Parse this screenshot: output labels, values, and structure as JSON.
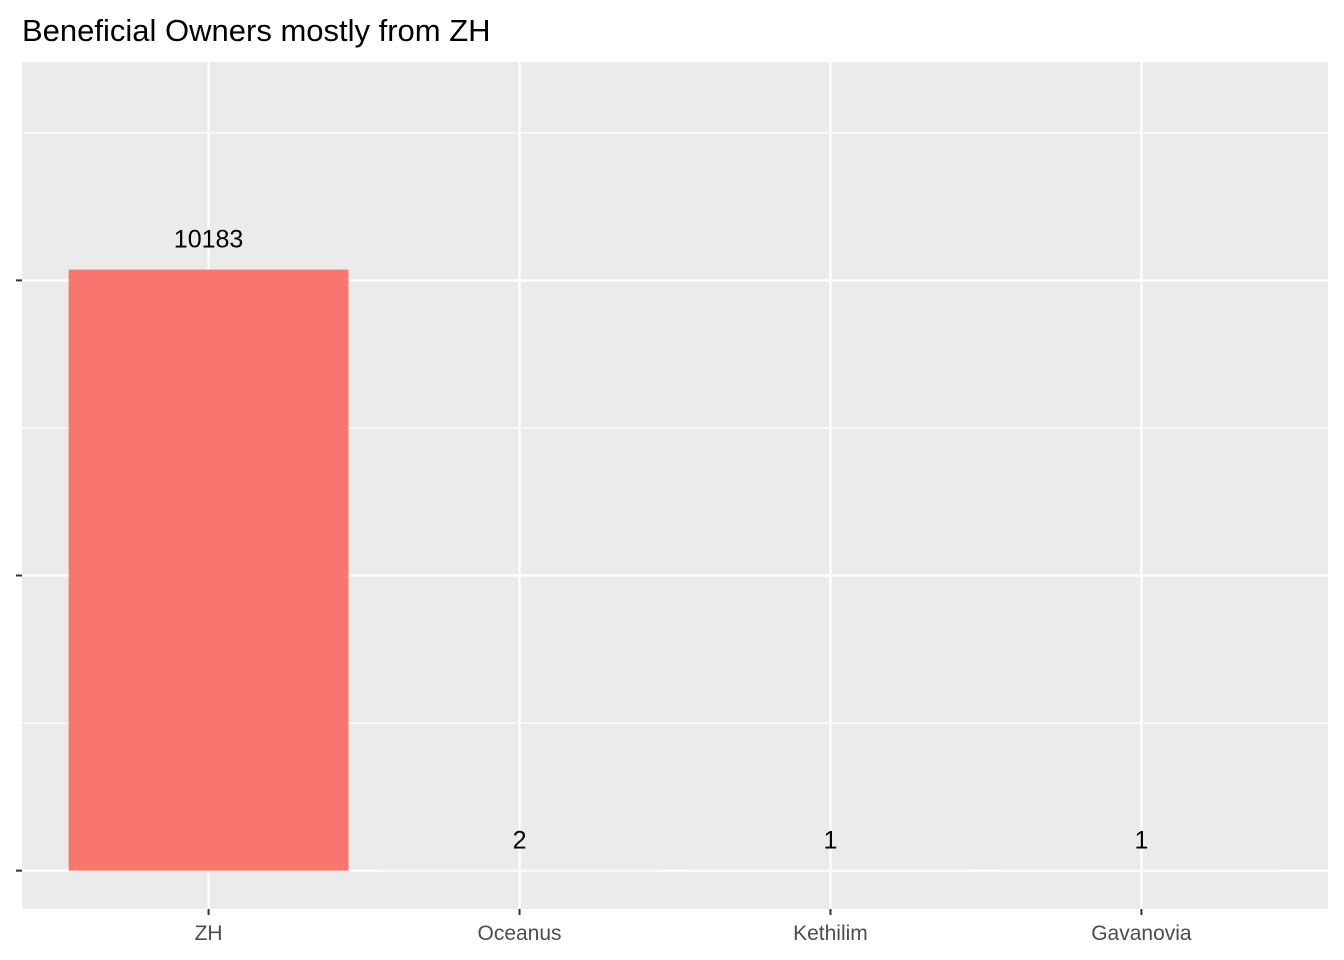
{
  "chart_data": {
    "type": "bar",
    "title": "Beneficial Owners mostly from ZH",
    "xlabel": "",
    "ylabel": "",
    "categories": [
      "ZH",
      "Oceanus",
      "Kethilim",
      "Gavanovia"
    ],
    "values": [
      10183,
      2,
      1,
      1
    ],
    "data_labels": [
      "10183",
      "2",
      "1",
      "1"
    ],
    "bar_color": "#F8766D",
    "panel_background": "#EBEBEB",
    "grid_color": "#FFFFFF",
    "ylim": [
      -650,
      13700
    ],
    "y_major_ticks": [
      0,
      5000,
      10000
    ],
    "y_minor_ticks": [
      2500,
      7500,
      12500
    ],
    "y_tick_labels_shown": false,
    "grid": true,
    "legend": "none"
  }
}
